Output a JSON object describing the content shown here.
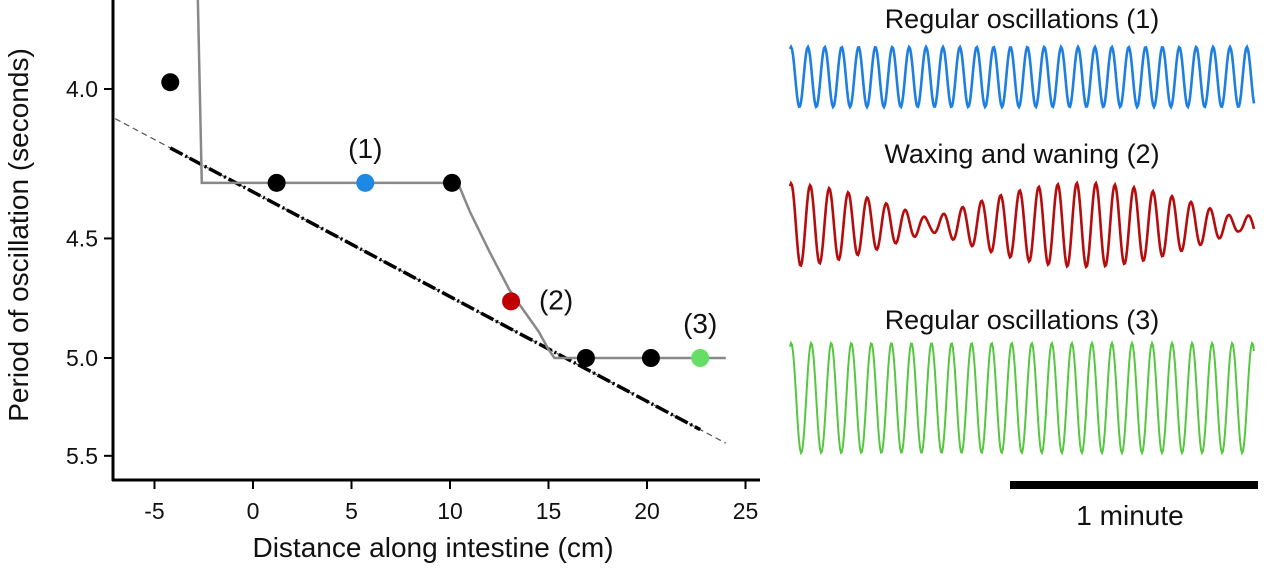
{
  "chart_data": [
    {
      "type": "scatter",
      "xlabel": "Distance along intestine (cm)",
      "ylabel": "Period of oscillation (seconds)",
      "xlim": [
        -7.1,
        25.7
      ],
      "ylim": [
        3.75,
        5.75
      ],
      "y_scale": "reciprocal (frequency), inverted so larger period is lower",
      "x_ticks": [
        "-5",
        "0",
        "5",
        "10",
        "15",
        "20",
        "25"
      ],
      "x_tick_values": [
        -5,
        0,
        5,
        10,
        15,
        20,
        25
      ],
      "y_ticks": [
        "4.0",
        "4.5",
        "5.0",
        "5.5"
      ],
      "y_tick_values": [
        4.0,
        4.5,
        5.0,
        5.5
      ],
      "grid": false,
      "points": [
        {
          "x": -4.2,
          "y": 3.98,
          "color": "#000000",
          "label": ""
        },
        {
          "x": 1.2,
          "y": 4.3,
          "color": "#000000",
          "label": ""
        },
        {
          "x": 5.7,
          "y": 4.3,
          "color": "#1e88e5",
          "label": "(1)"
        },
        {
          "x": 10.1,
          "y": 4.3,
          "color": "#000000",
          "label": ""
        },
        {
          "x": 13.1,
          "y": 4.75,
          "color": "#c00000",
          "label": "(2)"
        },
        {
          "x": 16.9,
          "y": 5.0,
          "color": "#000000",
          "label": ""
        },
        {
          "x": 20.2,
          "y": 5.0,
          "color": "#000000",
          "label": ""
        },
        {
          "x": 22.7,
          "y": 5.0,
          "color": "#66dd66",
          "label": "(3)"
        }
      ],
      "model_line": {
        "color": "#888888",
        "x": [
          -2.8,
          -2.6,
          10.4,
          11,
          12,
          13,
          13.5,
          14.5,
          15,
          15.3,
          24
        ],
        "y": [
          3.75,
          4.3,
          4.3,
          4.4,
          4.55,
          4.7,
          4.76,
          4.88,
          4.96,
          5.0,
          5.0
        ]
      },
      "gradient_line": {
        "color": "#000000",
        "x": [
          -7,
          24
        ],
        "y": [
          4.09,
          5.43
        ]
      }
    },
    {
      "type": "line",
      "traces": [
        {
          "title": "Regular oscillations (1)",
          "color": "#1e7fe0",
          "period_s": 4.3,
          "pattern": "regular"
        },
        {
          "title": "Waxing and waning (2)",
          "color": "#b50d0d",
          "period_s": 4.75,
          "pattern": "waxing-waning"
        },
        {
          "title": "Regular oscillations (3)",
          "color": "#55c840",
          "period_s": 5.0,
          "pattern": "regular"
        }
      ],
      "scale_bar": {
        "label": "1 minute",
        "seconds": 60
      }
    }
  ]
}
